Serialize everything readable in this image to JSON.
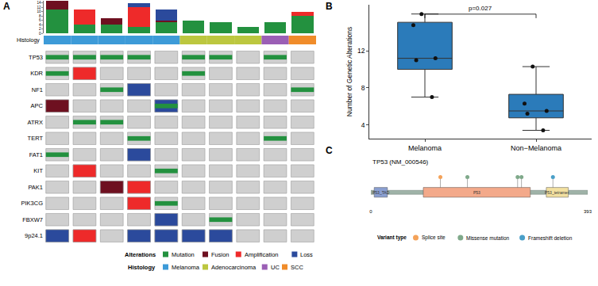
{
  "chart_data": [
    {
      "type": "oncoprint",
      "panel_label": "A",
      "ylim": [
        0,
        15
      ],
      "yticks": [
        0,
        2,
        4,
        6,
        8,
        10,
        12,
        14
      ],
      "stacked": true,
      "legend_title": "Alterations",
      "series": [
        {
          "name": "Mutation",
          "color": "#23913f",
          "marker": "strip",
          "values": [
            11,
            4,
            4,
            3,
            5,
            6,
            5,
            3,
            5,
            8
          ]
        },
        {
          "name": "Fusion",
          "color": "#6e1020",
          "marker": "fill",
          "values": [
            4,
            0,
            3,
            0,
            1,
            0,
            0,
            0,
            0,
            0
          ]
        },
        {
          "name": "Amplification",
          "color": "#ee2a2a",
          "marker": "fill",
          "values": [
            0,
            7,
            0,
            9,
            0,
            0,
            0,
            0,
            0,
            2
          ]
        },
        {
          "name": "Loss",
          "color": "#2b4a9c",
          "marker": "fill",
          "values": [
            0,
            0,
            0,
            2,
            5,
            0,
            0,
            0,
            0,
            0
          ]
        }
      ],
      "histology": {
        "label": "Histology",
        "categories": [
          "Melanoma",
          "Adenocarcinoma",
          "UC",
          "SCC"
        ],
        "colors": [
          "#3d9bd8",
          "#bcc73f",
          "#9b5fb5",
          "#f08c2a"
        ],
        "values": [
          "Melanoma",
          "Melanoma",
          "Melanoma",
          "Melanoma",
          "Melanoma",
          "Adenocarcinoma",
          "Adenocarcinoma",
          "Adenocarcinoma",
          "UC",
          "SCC"
        ]
      },
      "genes": [
        "TP53",
        "KDR",
        "NF1",
        "APC",
        "ATRX",
        "TERT",
        "FAT1",
        "KIT",
        "PAK1",
        "PIK3CG",
        "FBXW7",
        "9p24.1"
      ],
      "cells": [
        [
          [
            "Mutation"
          ],
          [
            "Mutation"
          ],
          [
            "Mutation"
          ],
          [
            "Mutation"
          ],
          [],
          [
            "Mutation"
          ],
          [
            "Mutation"
          ],
          [],
          [
            "Mutation"
          ],
          []
        ],
        [
          [
            "Mutation"
          ],
          [
            "Amplification"
          ],
          [],
          [],
          [],
          [
            "Mutation"
          ],
          [],
          [],
          [],
          []
        ],
        [
          [],
          [],
          [
            "Mutation"
          ],
          [
            "Loss"
          ],
          [],
          [],
          [],
          [],
          [],
          [
            "Mutation"
          ]
        ],
        [
          [
            "Fusion"
          ],
          [],
          [],
          [],
          [
            "Loss",
            "Mutation"
          ],
          [],
          [],
          [],
          [],
          []
        ],
        [
          [],
          [
            "Mutation"
          ],
          [
            "Mutation"
          ],
          [],
          [],
          [],
          [],
          [],
          [],
          []
        ],
        [
          [],
          [],
          [],
          [
            "Mutation"
          ],
          [],
          [],
          [],
          [],
          [
            "Mutation"
          ],
          []
        ],
        [
          [
            "Mutation"
          ],
          [],
          [],
          [
            "Loss"
          ],
          [],
          [],
          [],
          [],
          [],
          []
        ],
        [
          [],
          [
            "Amplification"
          ],
          [],
          [],
          [
            "Mutation"
          ],
          [],
          [],
          [],
          [],
          []
        ],
        [
          [],
          [],
          [
            "Fusion"
          ],
          [
            "Amplification"
          ],
          [],
          [],
          [],
          [],
          [],
          []
        ],
        [
          [],
          [],
          [],
          [
            "Amplification"
          ],
          [
            "Mutation"
          ],
          [],
          [],
          [],
          [],
          []
        ],
        [
          [],
          [],
          [],
          [],
          [
            "Loss"
          ],
          [],
          [
            "Mutation"
          ],
          [],
          [],
          []
        ],
        [
          [
            "Loss"
          ],
          [
            "Amplification"
          ],
          [],
          [
            "Loss"
          ],
          [
            "Loss"
          ],
          [
            "Loss"
          ],
          [
            "Loss"
          ],
          [],
          [],
          []
        ]
      ]
    },
    {
      "type": "box",
      "panel_label": "B",
      "categories": [
        "Melanoma",
        "Non−Melanoma"
      ],
      "values": [
        [
          16,
          14.8,
          11.2,
          11,
          7
        ],
        [
          10.3,
          6.3,
          5.5,
          5.2,
          3.4
        ]
      ],
      "color": "#2b7bba",
      "ylim": [
        2.5,
        17
      ],
      "yticks": [
        4,
        8,
        12
      ],
      "y_label": "Number of Genetic Alterations",
      "annotations": [
        {
          "text": "p=0.027",
          "from": "Melanoma",
          "to": "Non−Melanoma"
        }
      ]
    },
    {
      "type": "lollipop",
      "panel_label": "C",
      "title": "TP53 (NM_000546)",
      "xlim": [
        0,
        393
      ],
      "xticks": [
        0,
        393
      ],
      "ylim": [
        -1,
        1.6
      ],
      "tick_labels": "x",
      "domains": [
        {
          "name": "P53_TAD",
          "start": 6,
          "end": 30,
          "color": "#8a9fd1"
        },
        {
          "name": "P53",
          "start": 95,
          "end": 289,
          "color": "#f3a98a"
        },
        {
          "name": "P53_tetramer",
          "start": 318,
          "end": 358,
          "color": "#f2e0a0"
        }
      ],
      "legend_title": "Variant type",
      "series": [
        {
          "name": "Splice site",
          "color": "#f4a259",
          "x": [
            126
          ],
          "values": [
            1
          ]
        },
        {
          "name": "Missense mutation",
          "color": "#7fa98a",
          "x": [
            175,
            266,
            273
          ],
          "values": [
            1,
            1,
            1
          ]
        },
        {
          "name": "Frameshift deletion",
          "color": "#4a9fc8",
          "x": [
            330
          ],
          "values": [
            1
          ]
        }
      ]
    }
  ]
}
